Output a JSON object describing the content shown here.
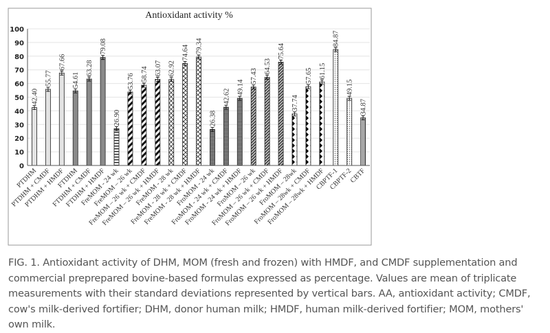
{
  "chart_data": {
    "type": "bar",
    "title": "Antioxidant activity %",
    "xlabel": "",
    "ylabel": "",
    "ylim": [
      0,
      100
    ],
    "yticks": [
      0,
      10,
      20,
      30,
      40,
      50,
      60,
      70,
      80,
      90,
      100
    ],
    "grid": true,
    "error_bars": true,
    "categories": [
      "PTDHM",
      "PTDHM + CMDF",
      "PTDHM + HMDF",
      "FTDHM",
      "FTDHM + CMDF",
      "FTDHM + HMDF",
      "FreMOM - 24 wk",
      "FreMOM – 26 wk",
      "FreMOM – 26 wk + CMDF",
      "FreMOM – 26 wk + HMDF",
      "FreMOM - 28 wk",
      "FreMOM - 28 wk + CMDF",
      "FreMOM - 28 wk + HMDF",
      "FroMOM - 24 wk",
      "FroMOM - 24 wk + CMDF",
      "FroMOM - 24 wk + HMDF",
      "FroMOM – 26 wk",
      "FroMOM – 26 wk + CMDF",
      "FroMOM – 26 wk + HMDF",
      "FroMOM – 28wk",
      "FroMOM – 28wk + CMDF",
      "FroMOM – 28wk + HMDF",
      "CBPTF-1",
      "CBPTF-2",
      "CBTF"
    ],
    "values": [
      42.4,
      55.77,
      67.66,
      54.61,
      63.28,
      79.08,
      26.9,
      53.76,
      58.74,
      63.07,
      62.92,
      74.64,
      79.34,
      26.38,
      42.62,
      49.14,
      57.43,
      64.53,
      75.64,
      37.74,
      57.65,
      61.15,
      84.87,
      49.15,
      34.87
    ],
    "data_labels": [
      "42.40",
      "55.77",
      "67.66",
      "54.61",
      "63.28",
      "79.08",
      "26.90",
      "53.76",
      "58.74",
      "63.07",
      "62.92",
      "74.64",
      "79.34",
      "26.38",
      "42.62",
      "49.14",
      "57.43",
      "64.53",
      "75.64",
      "37.74",
      "57.65",
      "61.15",
      "84.87",
      "49.15",
      "34.87"
    ],
    "patterns": [
      "light-gray",
      "light-gray",
      "light-gray",
      "gray",
      "gray",
      "gray",
      "horizontal-lines",
      "thick-diagonal",
      "thick-diagonal",
      "thick-diagonal",
      "crosshatch",
      "crosshatch",
      "crosshatch",
      "dense-horizontal",
      "dense-horizontal",
      "dense-horizontal",
      "dense-diagonal",
      "dense-diagonal",
      "dense-diagonal",
      "black-diamonds",
      "black-diamonds",
      "black-diamonds",
      "dots",
      "dots",
      "vertical-lines"
    ]
  },
  "caption": "FIG. 1. Antioxidant activity of DHM, MOM (fresh and frozen) with HMDF, and CMDF supplementation and commercial preprepared bovine-based formulas expressed as percentage. Values are mean of triplicate measurements with their standard deviations represented by vertical bars. AA, antioxidant activity; CMDF, cow's milk-derived fortifier; DHM, donor human milk; HMDF, human milk-derived fortifier; MOM, mothers' own milk."
}
